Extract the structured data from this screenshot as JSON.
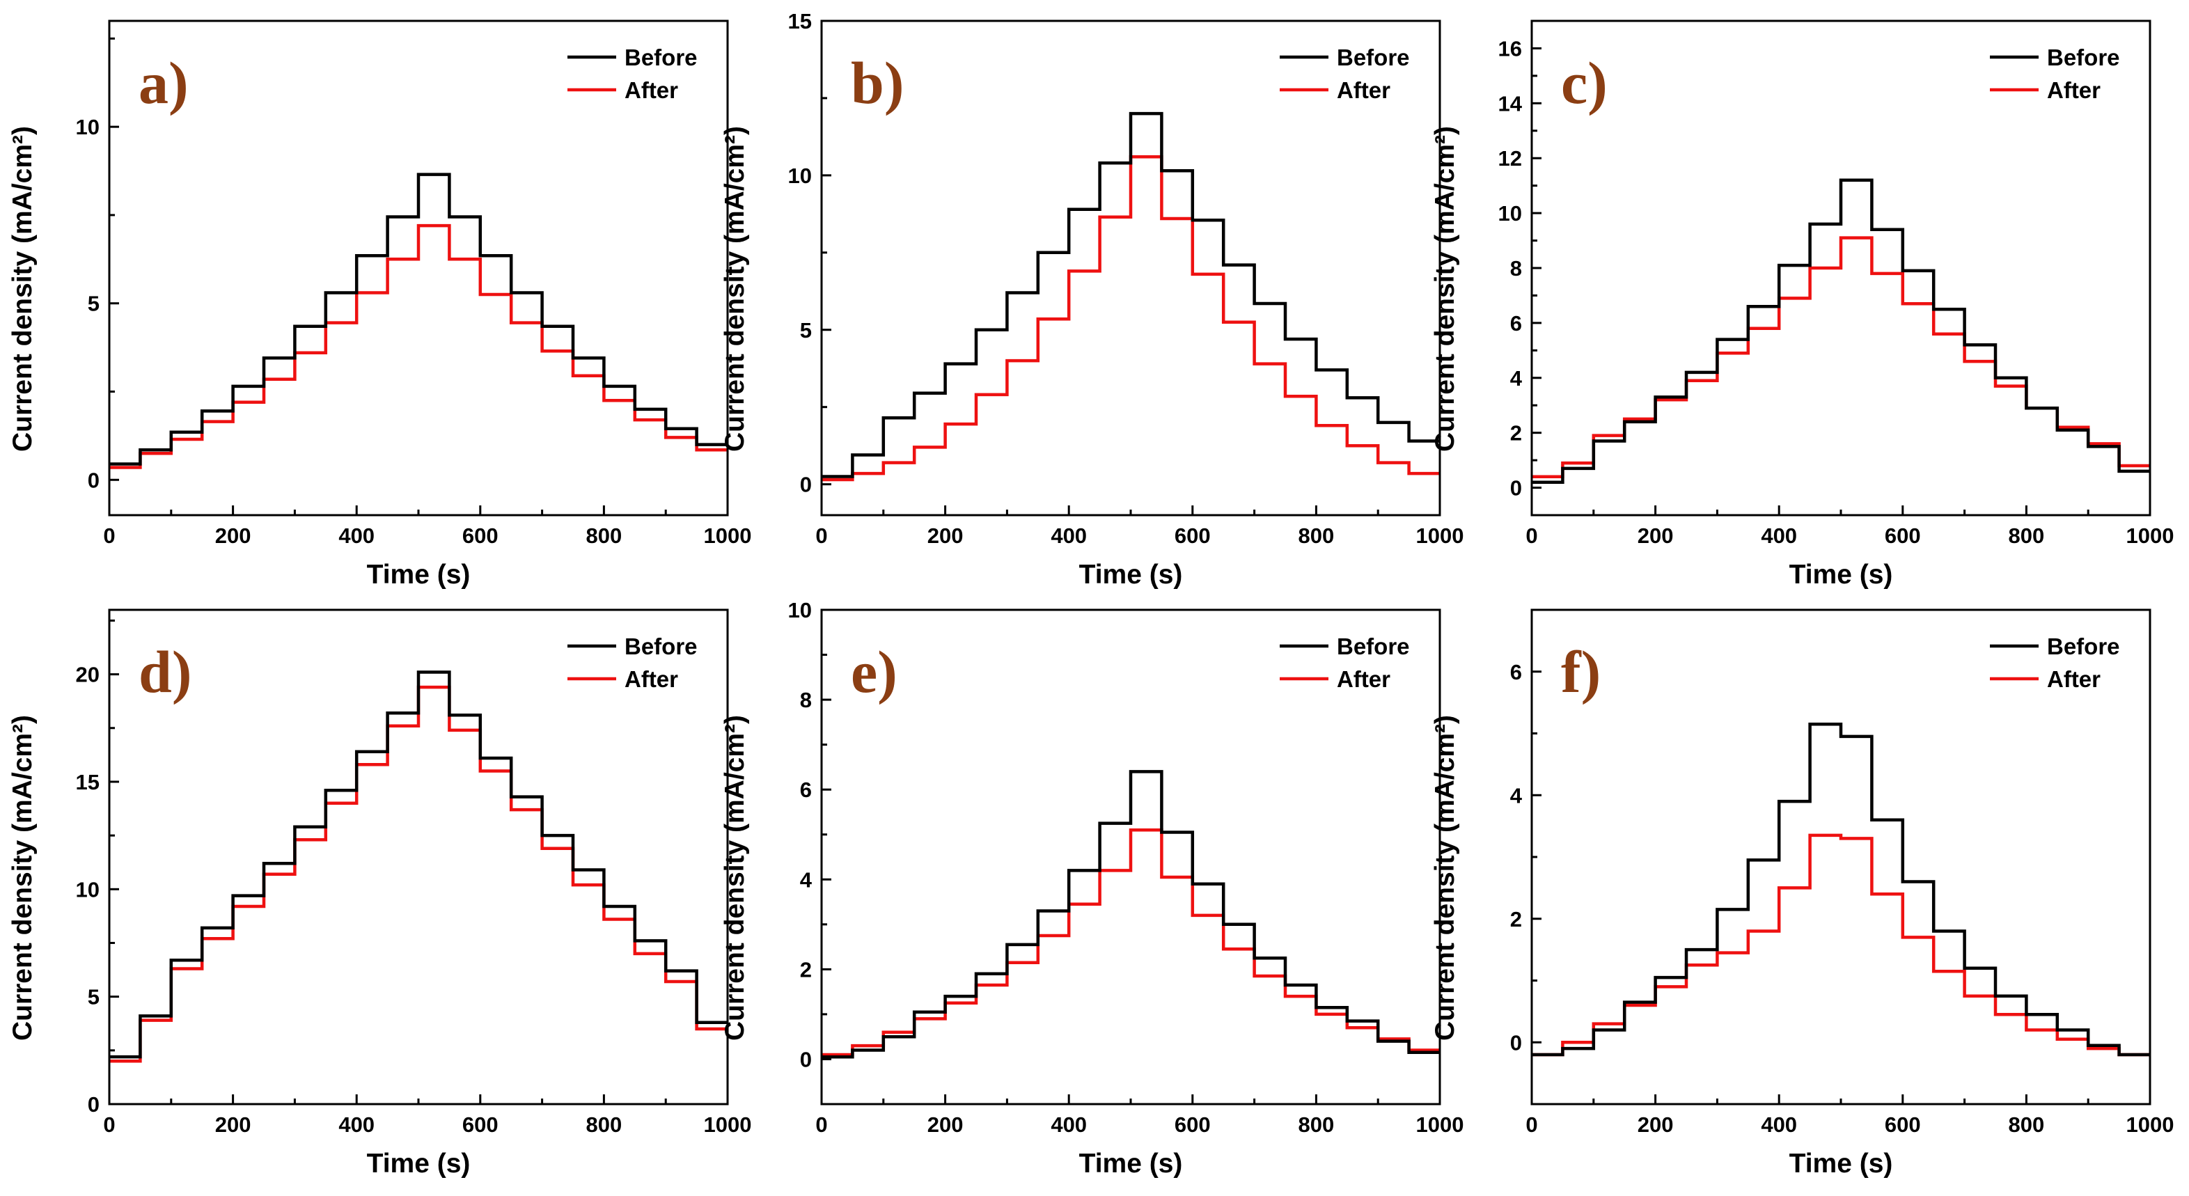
{
  "colors": {
    "before": "#000000",
    "after": "#ee1111",
    "panel_label": "#8b3e13"
  },
  "chart_data": [
    {
      "type": "line",
      "panel_label": "a)",
      "xlabel": "Time (s)",
      "ylabel": "Current density (mA/cm²)",
      "xlim": [
        0,
        1000
      ],
      "ylim": [
        -1,
        13
      ],
      "xticks": [
        0,
        200,
        400,
        600,
        800,
        1000
      ],
      "yticks": [
        0,
        5,
        10
      ],
      "legend": "top-right",
      "series": [
        {
          "name": "Before",
          "color": "#000000",
          "step_duration": 50,
          "values": [
            0.45,
            0.85,
            1.35,
            1.95,
            2.65,
            3.45,
            4.35,
            5.3,
            6.35,
            7.45,
            8.65,
            7.45,
            6.35,
            5.3,
            4.35,
            3.45,
            2.65,
            2.0,
            1.45,
            1.0
          ]
        },
        {
          "name": "After",
          "color": "#ee1111",
          "step_duration": 50,
          "values": [
            0.35,
            0.75,
            1.15,
            1.65,
            2.2,
            2.85,
            3.6,
            4.45,
            5.3,
            6.25,
            7.2,
            6.25,
            5.25,
            4.45,
            3.65,
            2.95,
            2.25,
            1.7,
            1.2,
            0.85
          ]
        }
      ]
    },
    {
      "type": "line",
      "panel_label": "b)",
      "xlabel": "Time (s)",
      "ylabel": "Current density (mA/cm²)",
      "xlim": [
        0,
        1000
      ],
      "ylim": [
        -1,
        15
      ],
      "xticks": [
        0,
        200,
        400,
        600,
        800,
        1000
      ],
      "yticks": [
        0,
        5,
        10,
        15
      ],
      "legend": "top-right",
      "series": [
        {
          "name": "Before",
          "color": "#000000",
          "step_duration": 50,
          "values": [
            0.25,
            0.95,
            2.15,
            2.95,
            3.9,
            5.0,
            6.2,
            7.5,
            8.9,
            10.4,
            12.0,
            10.15,
            8.55,
            7.1,
            5.85,
            4.7,
            3.7,
            2.8,
            2.0,
            1.4
          ]
        },
        {
          "name": "After",
          "color": "#ee1111",
          "step_duration": 50,
          "values": [
            0.15,
            0.35,
            0.7,
            1.2,
            1.95,
            2.9,
            4.0,
            5.35,
            6.9,
            8.65,
            10.6,
            8.6,
            6.8,
            5.25,
            3.9,
            2.85,
            1.9,
            1.25,
            0.7,
            0.35
          ]
        }
      ]
    },
    {
      "type": "line",
      "panel_label": "c)",
      "xlabel": "Time (s)",
      "ylabel": "Current density (mA/cm²)",
      "xlim": [
        0,
        1000
      ],
      "ylim": [
        -1,
        17
      ],
      "xticks": [
        0,
        200,
        400,
        600,
        800,
        1000
      ],
      "yticks": [
        0,
        2,
        4,
        6,
        8,
        10,
        12,
        14,
        16
      ],
      "legend": "top-right",
      "series": [
        {
          "name": "Before",
          "color": "#000000",
          "step_duration": 50,
          "values": [
            0.2,
            0.7,
            1.7,
            2.4,
            3.3,
            4.2,
            5.4,
            6.6,
            8.1,
            9.6,
            11.2,
            9.4,
            7.9,
            6.5,
            5.2,
            4.0,
            2.9,
            2.1,
            1.5,
            0.6
          ]
        },
        {
          "name": "After",
          "color": "#ee1111",
          "step_duration": 50,
          "values": [
            0.4,
            0.9,
            1.9,
            2.5,
            3.2,
            3.9,
            4.9,
            5.8,
            6.9,
            8.0,
            9.1,
            7.8,
            6.7,
            5.6,
            4.6,
            3.7,
            2.9,
            2.2,
            1.6,
            0.8
          ]
        }
      ]
    },
    {
      "type": "line",
      "panel_label": "d)",
      "xlabel": "Time (s)",
      "ylabel": "Current density (mA/cm²)",
      "xlim": [
        0,
        1000
      ],
      "ylim": [
        0,
        23
      ],
      "xticks": [
        0,
        200,
        400,
        600,
        800,
        1000
      ],
      "yticks": [
        0,
        5,
        10,
        15,
        20
      ],
      "legend": "top-right",
      "series": [
        {
          "name": "Before",
          "color": "#000000",
          "step_duration": 50,
          "values": [
            2.2,
            4.1,
            6.7,
            8.2,
            9.7,
            11.2,
            12.9,
            14.6,
            16.4,
            18.2,
            20.1,
            18.1,
            16.1,
            14.3,
            12.5,
            10.9,
            9.2,
            7.6,
            6.2,
            3.8
          ]
        },
        {
          "name": "After",
          "color": "#ee1111",
          "step_duration": 50,
          "values": [
            2.0,
            3.9,
            6.3,
            7.7,
            9.2,
            10.7,
            12.3,
            14.0,
            15.8,
            17.6,
            19.4,
            17.4,
            15.5,
            13.7,
            11.9,
            10.2,
            8.6,
            7.0,
            5.7,
            3.5
          ]
        }
      ]
    },
    {
      "type": "line",
      "panel_label": "e)",
      "xlabel": "Time (s)",
      "ylabel": "Current density (mA/cm²)",
      "xlim": [
        0,
        1000
      ],
      "ylim": [
        -1,
        10
      ],
      "xticks": [
        0,
        200,
        400,
        600,
        800,
        1000
      ],
      "yticks": [
        0,
        2,
        4,
        6,
        8,
        10
      ],
      "legend": "top-right",
      "series": [
        {
          "name": "Before",
          "color": "#000000",
          "step_duration": 50,
          "values": [
            0.05,
            0.2,
            0.5,
            1.05,
            1.4,
            1.9,
            2.55,
            3.3,
            4.2,
            5.25,
            6.4,
            5.05,
            3.9,
            3.0,
            2.25,
            1.65,
            1.15,
            0.85,
            0.4,
            0.15
          ]
        },
        {
          "name": "After",
          "color": "#ee1111",
          "step_duration": 50,
          "values": [
            0.1,
            0.3,
            0.6,
            0.9,
            1.25,
            1.65,
            2.15,
            2.75,
            3.45,
            4.2,
            5.1,
            4.05,
            3.2,
            2.45,
            1.85,
            1.4,
            1.0,
            0.7,
            0.45,
            0.2
          ]
        }
      ]
    },
    {
      "type": "line",
      "panel_label": "f)",
      "xlabel": "Time (s)",
      "ylabel": "Current density (mA/cm²)",
      "xlim": [
        0,
        1000
      ],
      "ylim": [
        -1,
        7
      ],
      "xticks": [
        0,
        200,
        400,
        600,
        800,
        1000
      ],
      "yticks": [
        0,
        2,
        4,
        6
      ],
      "legend": "top-right",
      "series": [
        {
          "name": "Before",
          "color": "#000000",
          "step_duration": 50,
          "values": [
            -0.2,
            -0.1,
            0.2,
            0.65,
            1.05,
            1.5,
            2.15,
            2.95,
            3.9,
            5.15,
            4.95,
            3.6,
            2.6,
            1.8,
            1.2,
            0.75,
            0.45,
            0.2,
            -0.05,
            -0.2
          ]
        },
        {
          "name": "After",
          "color": "#ee1111",
          "step_duration": 50,
          "values": [
            -0.2,
            0.0,
            0.3,
            0.6,
            0.9,
            1.25,
            1.45,
            1.8,
            2.5,
            3.35,
            3.3,
            2.4,
            1.7,
            1.15,
            0.75,
            0.45,
            0.2,
            0.05,
            -0.1,
            -0.2
          ]
        }
      ]
    }
  ]
}
